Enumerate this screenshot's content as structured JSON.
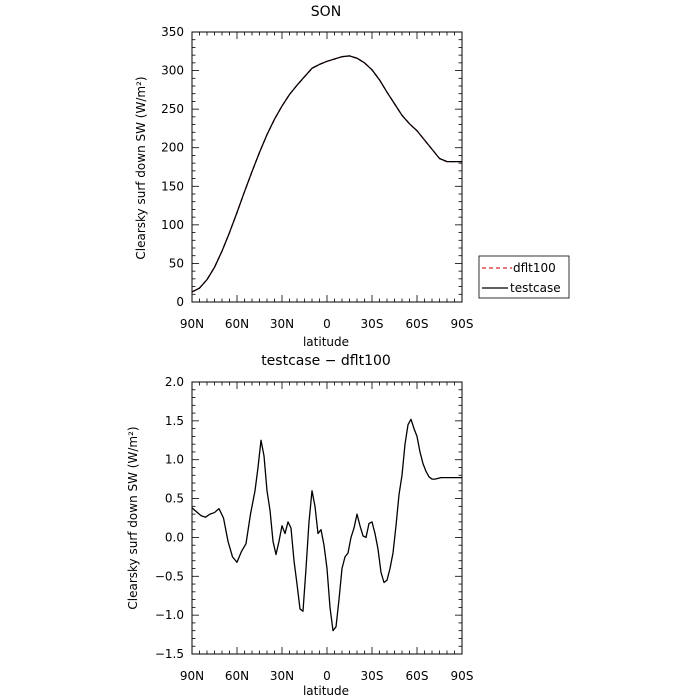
{
  "chart_data": [
    {
      "type": "line",
      "title": "SON",
      "xlabel": "latitude",
      "ylabel": "Clearsky surf down SW (W/m²)",
      "x_tick_labels": [
        "90N",
        "60N",
        "30N",
        "0",
        "30S",
        "60S",
        "90S"
      ],
      "x_ticks": [
        90,
        60,
        30,
        0,
        -30,
        -60,
        -90
      ],
      "xlim": [
        90,
        -90
      ],
      "ylim": [
        0,
        350
      ],
      "y_ticks": [
        0,
        50,
        100,
        150,
        200,
        250,
        300,
        350
      ],
      "legend": {
        "placement": "outside-right",
        "entries": [
          "dflt100",
          "testcase"
        ]
      },
      "series": [
        {
          "name": "dflt100",
          "style": "dashed",
          "color": "#d62728",
          "x": [
            90,
            85,
            80,
            75,
            70,
            65,
            60,
            55,
            50,
            45,
            40,
            35,
            30,
            25,
            20,
            15,
            10,
            5,
            0,
            -5,
            -10,
            -15,
            -20,
            -25,
            -30,
            -35,
            -40,
            -45,
            -50,
            -55,
            -60,
            -65,
            -70,
            -75,
            -80,
            -85,
            -88,
            -90
          ],
          "y": [
            13,
            18,
            29,
            45,
            66,
            90,
            116,
            143,
            169,
            194,
            217,
            237,
            254,
            269,
            281,
            292,
            303,
            308,
            312,
            315,
            318,
            319,
            316,
            310,
            301,
            288,
            272,
            257,
            242,
            231,
            222,
            210,
            198,
            186,
            182,
            182,
            182,
            182
          ]
        },
        {
          "name": "testcase",
          "style": "solid",
          "color": "#000000",
          "x": [
            90,
            85,
            80,
            75,
            70,
            65,
            60,
            55,
            50,
            45,
            40,
            35,
            30,
            25,
            20,
            15,
            10,
            5,
            0,
            -5,
            -10,
            -15,
            -20,
            -25,
            -30,
            -35,
            -40,
            -45,
            -50,
            -55,
            -60,
            -65,
            -70,
            -75,
            -80,
            -85,
            -88,
            -90
          ],
          "y": [
            13,
            18,
            29,
            45,
            66,
            90,
            116,
            143,
            169,
            194,
            217,
            237,
            254,
            269,
            281,
            292,
            303,
            308,
            312,
            315,
            318,
            319,
            316,
            310,
            301,
            288,
            272,
            257,
            242,
            231,
            222,
            210,
            198,
            186,
            182,
            182,
            182,
            182
          ]
        }
      ]
    },
    {
      "type": "line",
      "title": "testcase − dflt100",
      "xlabel": "latitude",
      "ylabel": "Clearsky surf down SW (W/m²)",
      "x_tick_labels": [
        "90N",
        "60N",
        "30N",
        "0",
        "30S",
        "60S",
        "90S"
      ],
      "x_ticks": [
        90,
        60,
        30,
        0,
        -30,
        -60,
        -90
      ],
      "xlim": [
        90,
        -90
      ],
      "ylim": [
        -1.5,
        2.0
      ],
      "y_tick_labels": [
        "−1.5",
        "−1.0",
        "−0.5",
        "0.0",
        "0.5",
        "1.0",
        "1.5",
        "2.0"
      ],
      "y_ticks": [
        -1.5,
        -1.0,
        -0.5,
        0.0,
        0.5,
        1.0,
        1.5,
        2.0
      ],
      "series": [
        {
          "style": "solid",
          "color": "#000000",
          "x": [
            90,
            87,
            84,
            81,
            78,
            75,
            72,
            69,
            66,
            63,
            60,
            57,
            54,
            51,
            48,
            46,
            44,
            42,
            40,
            38,
            36,
            34,
            32,
            30,
            28,
            26,
            24,
            22,
            20,
            18,
            16,
            14,
            12,
            10,
            8,
            6,
            4,
            2,
            0,
            -2,
            -4,
            -6,
            -8,
            -10,
            -12,
            -14,
            -16,
            -18,
            -20,
            -22,
            -24,
            -26,
            -28,
            -30,
            -32,
            -34,
            -36,
            -38,
            -40,
            -42,
            -44,
            -46,
            -48,
            -50,
            -52,
            -54,
            -56,
            -58,
            -60,
            -62,
            -64,
            -66,
            -68,
            -70,
            -72,
            -74,
            -76,
            -78,
            -80,
            -82,
            -84,
            -86,
            -88,
            -90
          ],
          "y": [
            0.38,
            0.33,
            0.28,
            0.26,
            0.3,
            0.32,
            0.37,
            0.25,
            -0.05,
            -0.25,
            -0.32,
            -0.18,
            -0.08,
            0.3,
            0.6,
            0.9,
            1.25,
            1.05,
            0.6,
            0.35,
            -0.05,
            -0.22,
            -0.05,
            0.15,
            0.05,
            0.2,
            0.12,
            -0.3,
            -0.6,
            -0.92,
            -0.95,
            -0.4,
            0.2,
            0.6,
            0.4,
            0.05,
            0.1,
            -0.1,
            -0.4,
            -0.9,
            -1.2,
            -1.15,
            -0.8,
            -0.4,
            -0.25,
            -0.2,
            0.0,
            0.12,
            0.3,
            0.15,
            0.02,
            0.0,
            0.18,
            0.2,
            0.05,
            -0.15,
            -0.45,
            -0.58,
            -0.55,
            -0.4,
            -0.2,
            0.15,
            0.55,
            0.8,
            1.2,
            1.45,
            1.52,
            1.4,
            1.3,
            1.1,
            0.95,
            0.85,
            0.78,
            0.75,
            0.75,
            0.76,
            0.77,
            0.77,
            0.77,
            0.77,
            0.77,
            0.77,
            0.77,
            0.77
          ]
        }
      ]
    }
  ]
}
